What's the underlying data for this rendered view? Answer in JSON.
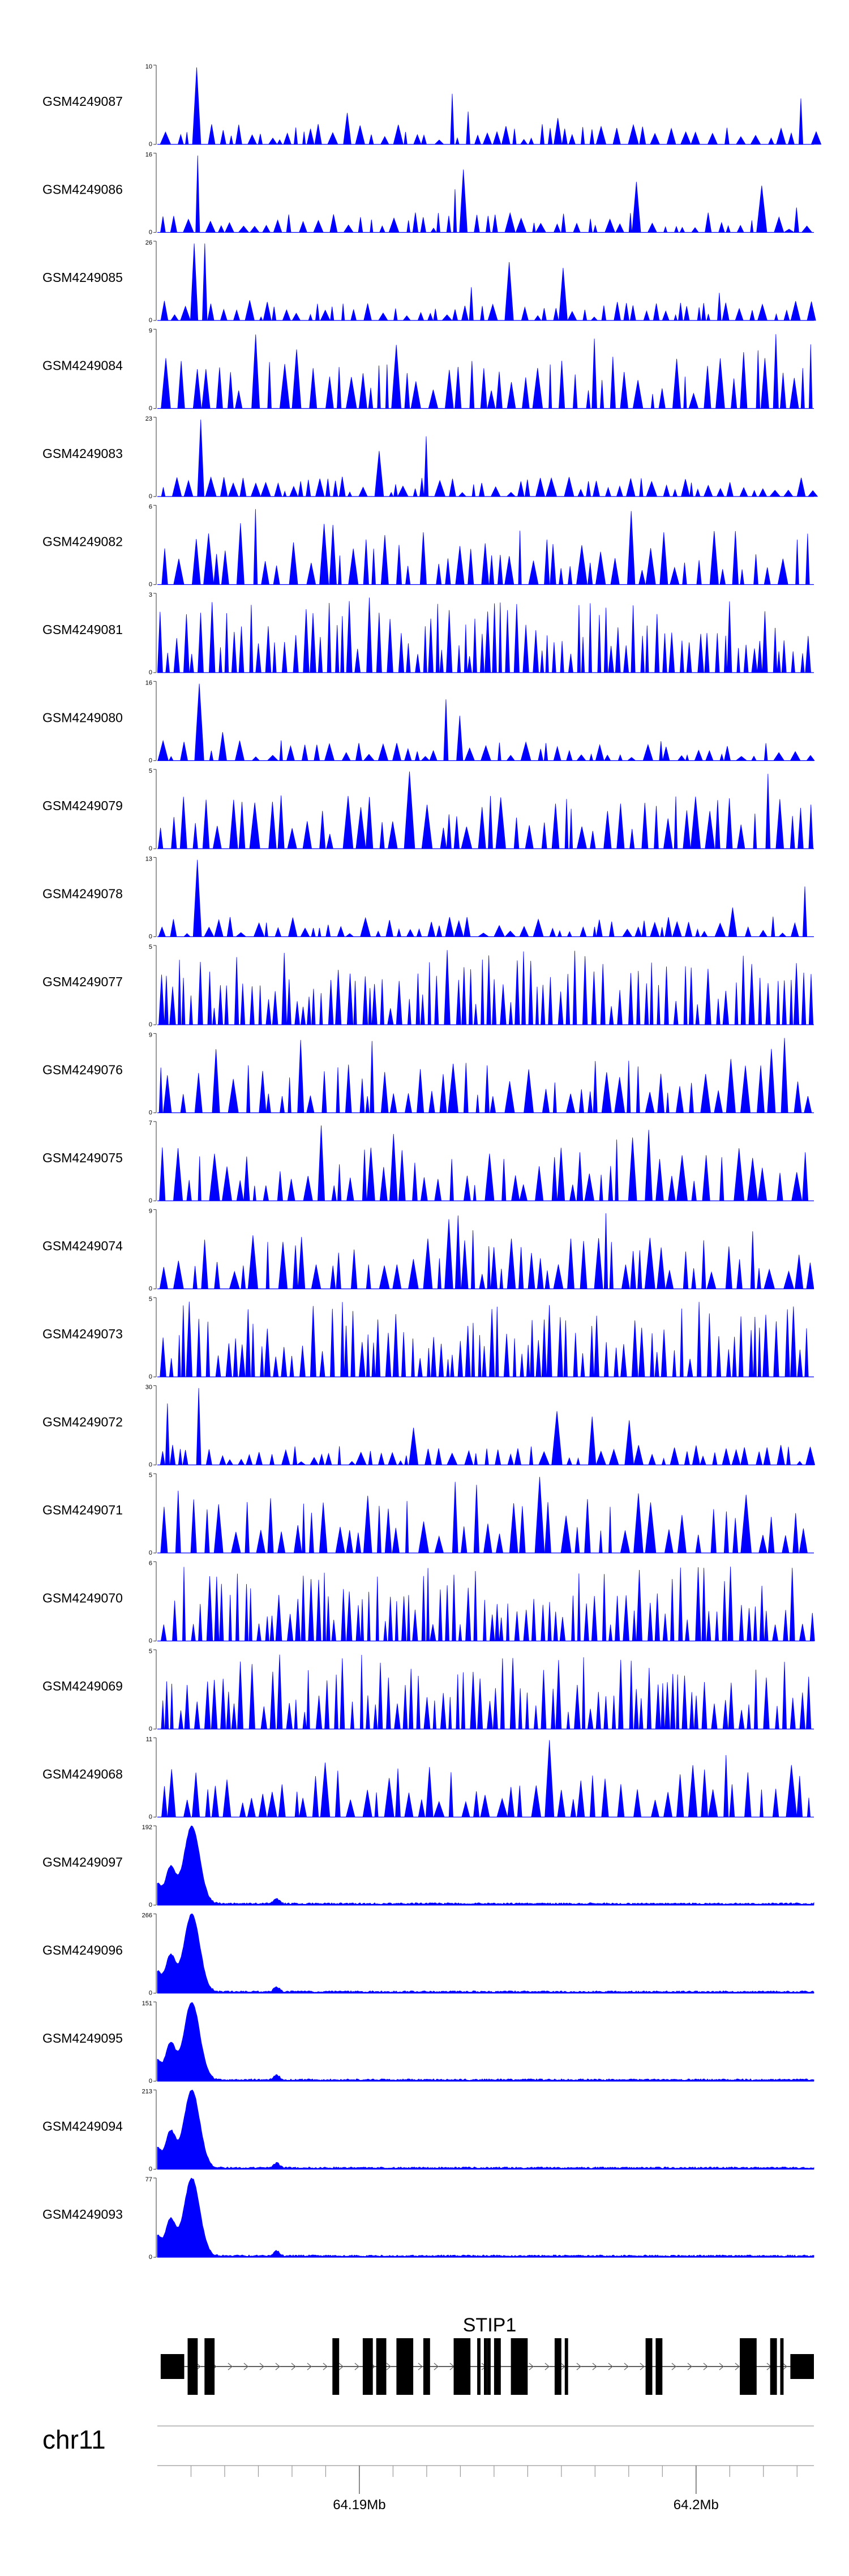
{
  "chart_data": {
    "type": "area",
    "region": {
      "chromosome": "chr11",
      "x_ticks": [
        64.19,
        64.2
      ],
      "x_tick_labels": [
        "64.19Mb",
        "64.2Mb"
      ],
      "minor_ticks": [
        64.185,
        64.186,
        64.187,
        64.188,
        64.189,
        64.19,
        64.191,
        64.192,
        64.193,
        64.194,
        64.195,
        64.196,
        64.197,
        64.198,
        64.199,
        64.2,
        64.201,
        64.202,
        64.203,
        64.204
      ],
      "xlim": [
        64.184,
        64.2035
      ]
    },
    "colors": {
      "fill": "#0000ff",
      "gene": "#000000",
      "axis": "#555555"
    },
    "series": [
      {
        "name": "GSM4249087",
        "ymax": 10,
        "peak": 1.4,
        "density": "sparse"
      },
      {
        "name": "GSM4249086",
        "ymax": 16,
        "peak": 1.4,
        "density": "sparse"
      },
      {
        "name": "GSM4249085",
        "ymax": 26,
        "peak": 1.4,
        "density": "sparse"
      },
      {
        "name": "GSM4249084",
        "ymax": 9,
        "peak": 1.4,
        "density": "medium"
      },
      {
        "name": "GSM4249083",
        "ymax": 23,
        "peak": 1.4,
        "density": "sparse"
      },
      {
        "name": "GSM4249082",
        "ymax": 6,
        "peak": 1.4,
        "density": "medium"
      },
      {
        "name": "GSM4249081",
        "ymax": 3,
        "peak": 1.4,
        "density": "dense"
      },
      {
        "name": "GSM4249080",
        "ymax": 16,
        "peak": 1.4,
        "density": "sparse"
      },
      {
        "name": "GSM4249079",
        "ymax": 5,
        "peak": 1.4,
        "density": "medium"
      },
      {
        "name": "GSM4249078",
        "ymax": 13,
        "peak": 1.4,
        "density": "sparse"
      },
      {
        "name": "GSM4249077",
        "ymax": 5,
        "peak": 1.4,
        "density": "dense"
      },
      {
        "name": "GSM4249076",
        "ymax": 9,
        "peak": 1.4,
        "density": "medium"
      },
      {
        "name": "GSM4249075",
        "ymax": 7,
        "peak": 1.4,
        "density": "medium"
      },
      {
        "name": "GSM4249074",
        "ymax": 9,
        "peak": 1.4,
        "density": "medium"
      },
      {
        "name": "GSM4249073",
        "ymax": 5,
        "peak": 1.4,
        "density": "dense"
      },
      {
        "name": "GSM4249072",
        "ymax": 30,
        "peak": 1.4,
        "density": "sparse"
      },
      {
        "name": "GSM4249071",
        "ymax": 5,
        "peak": 1.4,
        "density": "medium"
      },
      {
        "name": "GSM4249070",
        "ymax": 6,
        "peak": 1.4,
        "density": "dense"
      },
      {
        "name": "GSM4249069",
        "ymax": 5,
        "peak": 1.4,
        "density": "dense"
      },
      {
        "name": "GSM4249068",
        "ymax": 11,
        "peak": 1.4,
        "density": "medium"
      },
      {
        "name": "GSM4249097",
        "ymax": 192,
        "peak": 1.65,
        "density": "smooth"
      },
      {
        "name": "GSM4249096",
        "ymax": 266,
        "peak": 1.65,
        "density": "smooth"
      },
      {
        "name": "GSM4249095",
        "ymax": 151,
        "peak": 1.65,
        "density": "smooth"
      },
      {
        "name": "GSM4249094",
        "ymax": 213,
        "peak": 1.65,
        "density": "smooth"
      },
      {
        "name": "GSM4249093",
        "ymax": 77,
        "peak": 1.65,
        "density": "smooth"
      }
    ],
    "gene": {
      "name": "STIP1",
      "exons": [
        [
          64.1841,
          64.1848
        ],
        [
          64.1849,
          64.1852
        ],
        [
          64.1854,
          64.1857
        ],
        [
          64.1892,
          64.1894
        ],
        [
          64.1901,
          64.1904
        ],
        [
          64.1905,
          64.1908
        ],
        [
          64.1911,
          64.1916
        ],
        [
          64.1919,
          64.1921
        ],
        [
          64.1928,
          64.1933
        ],
        [
          64.1935,
          64.1936
        ],
        [
          64.1937,
          64.1938
        ],
        [
          64.1938,
          64.1939
        ],
        [
          64.194,
          64.1942
        ],
        [
          64.1945,
          64.195
        ],
        [
          64.1958,
          64.196
        ],
        [
          64.1961,
          64.1962
        ],
        [
          64.1985,
          64.1987
        ],
        [
          64.1988,
          64.199
        ],
        [
          64.2013,
          64.2018
        ],
        [
          64.2022,
          64.2024
        ],
        [
          64.2025,
          64.2026
        ],
        [
          64.2028,
          64.2035
        ]
      ]
    }
  }
}
